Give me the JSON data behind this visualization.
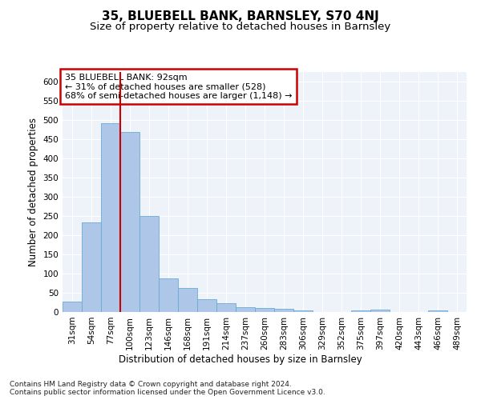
{
  "title": "35, BLUEBELL BANK, BARNSLEY, S70 4NJ",
  "subtitle": "Size of property relative to detached houses in Barnsley",
  "xlabel": "Distribution of detached houses by size in Barnsley",
  "ylabel": "Number of detached properties",
  "categories": [
    "31sqm",
    "54sqm",
    "77sqm",
    "100sqm",
    "123sqm",
    "146sqm",
    "168sqm",
    "191sqm",
    "214sqm",
    "237sqm",
    "260sqm",
    "283sqm",
    "306sqm",
    "329sqm",
    "352sqm",
    "375sqm",
    "397sqm",
    "420sqm",
    "443sqm",
    "466sqm",
    "489sqm"
  ],
  "values": [
    27,
    233,
    491,
    468,
    249,
    88,
    63,
    33,
    23,
    13,
    11,
    9,
    5,
    0,
    0,
    5,
    6,
    0,
    0,
    5,
    0
  ],
  "bar_color": "#aec6e8",
  "bar_edge_color": "#6aaad4",
  "annotation_box_text": "35 BLUEBELL BANK: 92sqm\n← 31% of detached houses are smaller (528)\n68% of semi-detached houses are larger (1,148) →",
  "annotation_box_edge_color": "#cc0000",
  "property_line_x": 2.5,
  "property_line_color": "#cc0000",
  "ylim": [
    0,
    625
  ],
  "yticks": [
    0,
    50,
    100,
    150,
    200,
    250,
    300,
    350,
    400,
    450,
    500,
    550,
    600
  ],
  "footnote": "Contains HM Land Registry data © Crown copyright and database right 2024.\nContains public sector information licensed under the Open Government Licence v3.0.",
  "background_color": "#eef2f9",
  "grid_color": "#ffffff",
  "title_fontsize": 11,
  "subtitle_fontsize": 9.5,
  "axis_label_fontsize": 8.5,
  "tick_fontsize": 7.5,
  "annotation_fontsize": 8,
  "footnote_fontsize": 6.5
}
